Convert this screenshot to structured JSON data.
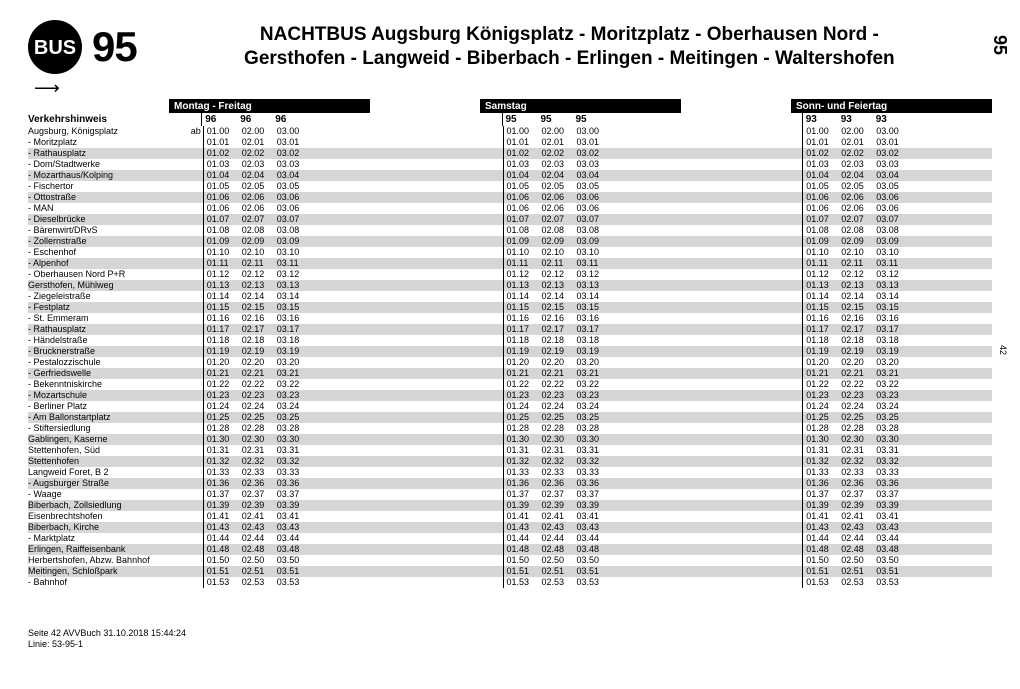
{
  "route_number": "95",
  "bus_label": "BUS",
  "title_line1": "NACHTBUS Augsburg Königsplatz - Moritzplatz - Oberhausen Nord -",
  "title_line2": "Gersthofen - Langweid - Biberbach - Erlingen - Meitingen - Waltershofen",
  "side_big": "95",
  "side_small": "42",
  "verkehrshinweis": "Verkehrshinweis",
  "footer_line1": "Seite 42 AVVBuch 31.10.2018 15:44:24",
  "footer_line2": "Linie: 53-95-1",
  "day_groups": [
    {
      "label": "Montag - Freitag",
      "routes": [
        "96",
        "96",
        "96"
      ]
    },
    {
      "label": "Samstag",
      "routes": [
        "95",
        "95",
        "95"
      ]
    },
    {
      "label": "Sonn- und Feiertag",
      "routes": [
        "93",
        "93",
        "93"
      ]
    }
  ],
  "ab_prefix": "ab",
  "stops": [
    {
      "name": "Augsburg, Königsplatz",
      "shade": false,
      "t": [
        "01.00",
        "02.00",
        "03.00"
      ],
      "ab": true
    },
    {
      "name": "- Moritzplatz",
      "shade": false,
      "t": [
        "01.01",
        "02.01",
        "03.01"
      ]
    },
    {
      "name": "- Rathausplatz",
      "shade": true,
      "t": [
        "01.02",
        "02.02",
        "03.02"
      ]
    },
    {
      "name": "- Dom/Stadtwerke",
      "shade": false,
      "t": [
        "01.03",
        "02.03",
        "03.03"
      ]
    },
    {
      "name": "- Mozarthaus/Kolping",
      "shade": true,
      "t": [
        "01.04",
        "02.04",
        "03.04"
      ]
    },
    {
      "name": "- Fischertor",
      "shade": false,
      "t": [
        "01.05",
        "02.05",
        "03.05"
      ]
    },
    {
      "name": "- Ottostraße",
      "shade": true,
      "t": [
        "01.06",
        "02.06",
        "03.06"
      ]
    },
    {
      "name": "- MAN",
      "shade": false,
      "t": [
        "01.06",
        "02.06",
        "03.06"
      ]
    },
    {
      "name": "- Dieselbrücke",
      "shade": true,
      "t": [
        "01.07",
        "02.07",
        "03.07"
      ]
    },
    {
      "name": "- Bärenwirt/DRvS",
      "shade": false,
      "t": [
        "01.08",
        "02.08",
        "03.08"
      ]
    },
    {
      "name": "- Zollernstraße",
      "shade": true,
      "t": [
        "01.09",
        "02.09",
        "03.09"
      ]
    },
    {
      "name": "- Eschenhof",
      "shade": false,
      "t": [
        "01.10",
        "02.10",
        "03.10"
      ]
    },
    {
      "name": "- Alpenhof",
      "shade": true,
      "t": [
        "01.11",
        "02.11",
        "03.11"
      ]
    },
    {
      "name": "- Oberhausen Nord P+R",
      "shade": false,
      "t": [
        "01.12",
        "02.12",
        "03.12"
      ]
    },
    {
      "name": "Gersthofen, Mühlweg",
      "shade": true,
      "t": [
        "01.13",
        "02.13",
        "03.13"
      ]
    },
    {
      "name": "- Ziegeleistraße",
      "shade": false,
      "t": [
        "01.14",
        "02.14",
        "03.14"
      ]
    },
    {
      "name": "- Festplatz",
      "shade": true,
      "t": [
        "01.15",
        "02.15",
        "03.15"
      ]
    },
    {
      "name": "- St. Emmeram",
      "shade": false,
      "t": [
        "01.16",
        "02.16",
        "03.16"
      ]
    },
    {
      "name": "- Rathausplatz",
      "shade": true,
      "t": [
        "01.17",
        "02.17",
        "03.17"
      ]
    },
    {
      "name": "- Händelstraße",
      "shade": false,
      "t": [
        "01.18",
        "02.18",
        "03.18"
      ]
    },
    {
      "name": "- Brucknerstraße",
      "shade": true,
      "t": [
        "01.19",
        "02.19",
        "03.19"
      ]
    },
    {
      "name": "- Pestalozzischule",
      "shade": false,
      "t": [
        "01.20",
        "02.20",
        "03.20"
      ]
    },
    {
      "name": "- Gerfriedswelle",
      "shade": true,
      "t": [
        "01.21",
        "02.21",
        "03.21"
      ]
    },
    {
      "name": "- Bekenntniskirche",
      "shade": false,
      "t": [
        "01.22",
        "02.22",
        "03.22"
      ]
    },
    {
      "name": "- Mozartschule",
      "shade": true,
      "t": [
        "01.23",
        "02.23",
        "03.23"
      ]
    },
    {
      "name": "- Berliner Platz",
      "shade": false,
      "t": [
        "01.24",
        "02.24",
        "03.24"
      ]
    },
    {
      "name": "- Am Ballonstartplatz",
      "shade": true,
      "t": [
        "01.25",
        "02.25",
        "03.25"
      ]
    },
    {
      "name": "- Stiftersiedlung",
      "shade": false,
      "t": [
        "01.28",
        "02.28",
        "03.28"
      ]
    },
    {
      "name": "Gablingen, Kaserne",
      "shade": true,
      "t": [
        "01.30",
        "02.30",
        "03.30"
      ]
    },
    {
      "name": "Stettenhofen, Süd",
      "shade": false,
      "t": [
        "01.31",
        "02.31",
        "03.31"
      ]
    },
    {
      "name": "Stettenhofen",
      "shade": true,
      "t": [
        "01.32",
        "02.32",
        "03.32"
      ]
    },
    {
      "name": "Langweid Foret, B 2",
      "shade": false,
      "t": [
        "01.33",
        "02.33",
        "03.33"
      ]
    },
    {
      "name": "- Augsburger Straße",
      "shade": true,
      "t": [
        "01.36",
        "02.36",
        "03.36"
      ]
    },
    {
      "name": "- Waage",
      "shade": false,
      "t": [
        "01.37",
        "02.37",
        "03.37"
      ]
    },
    {
      "name": "Biberbach, Zollsiedlung",
      "shade": true,
      "t": [
        "01.39",
        "02.39",
        "03.39"
      ]
    },
    {
      "name": "Eisenbrechtshofen",
      "shade": false,
      "t": [
        "01.41",
        "02.41",
        "03.41"
      ]
    },
    {
      "name": "Biberbach, Kirche",
      "shade": true,
      "t": [
        "01.43",
        "02.43",
        "03.43"
      ]
    },
    {
      "name": "- Marktplatz",
      "shade": false,
      "t": [
        "01.44",
        "02.44",
        "03.44"
      ]
    },
    {
      "name": "Erlingen, Raiffeisenbank",
      "shade": true,
      "t": [
        "01.48",
        "02.48",
        "03.48"
      ]
    },
    {
      "name": "Herbertshofen, Abzw. Bahnhof",
      "shade": false,
      "t": [
        "01.50",
        "02.50",
        "03.50"
      ]
    },
    {
      "name": "Meitingen, Schloßpark",
      "shade": true,
      "t": [
        "01.51",
        "02.51",
        "03.51"
      ]
    },
    {
      "name": "- Bahnhof",
      "shade": false,
      "t": [
        "01.53",
        "02.53",
        "03.53"
      ]
    }
  ]
}
